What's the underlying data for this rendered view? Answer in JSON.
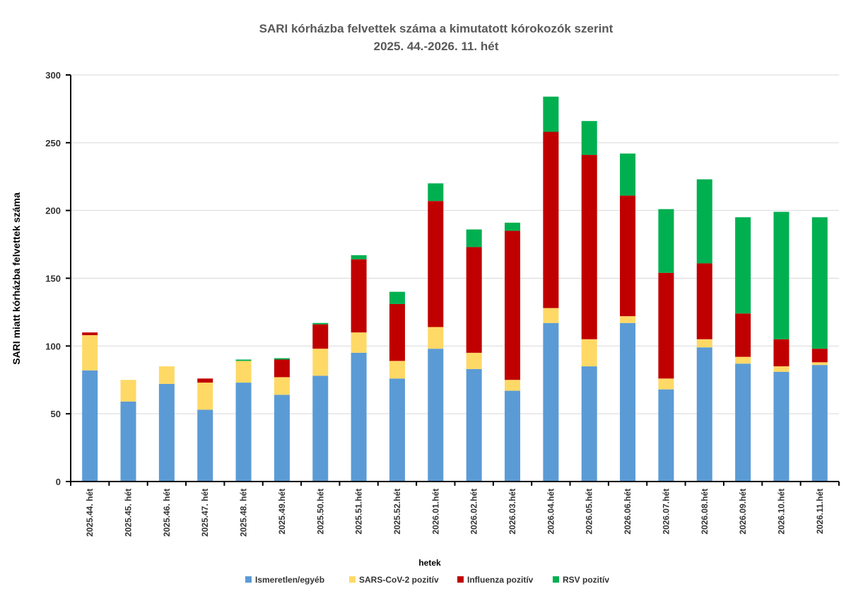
{
  "chart_data": {
    "type": "bar",
    "stacked": true,
    "title": "SARI kórházba felvettek száma a kimutatott kórokozók szerint",
    "subtitle": "2025. 44.-2026. 11. hét",
    "xlabel": "hetek",
    "ylabel": "SARI miatt kórházba felvettek száma",
    "ylim": [
      0,
      300
    ],
    "yticks": [
      0,
      50,
      100,
      150,
      200,
      250,
      300
    ],
    "grid": true,
    "legend_position": "bottom",
    "categories": [
      "2025.44. hét",
      "2025.45. hét",
      "2025.46. hét",
      "2025.47. hét",
      "2025.48. hét",
      "2025.49.hét",
      "2025.50.hét",
      "2025.51.hét",
      "2025.52.hét",
      "2026.01.hét",
      "2026.02.hét",
      "2026.03.hét",
      "2026.04.hét",
      "2026.05.hét",
      "2026.06.hét",
      "2026.07.hét",
      "2026.08.hét",
      "2026.09.hét",
      "2026.10.hét",
      "2026.11.hét"
    ],
    "series": [
      {
        "name": "Ismeretlen/egyéb",
        "color": "#5b9bd5",
        "values": [
          82,
          59,
          72,
          53,
          73,
          64,
          78,
          95,
          76,
          98,
          83,
          67,
          117,
          85,
          117,
          68,
          99,
          87,
          81,
          86
        ]
      },
      {
        "name": "SARS-CoV-2 pozitív",
        "color": "#ffd966",
        "values": [
          26,
          16,
          13,
          20,
          16,
          13,
          20,
          15,
          13,
          16,
          12,
          8,
          11,
          20,
          5,
          8,
          6,
          5,
          4,
          2
        ]
      },
      {
        "name": "Influenza pozitív",
        "color": "#c00000",
        "values": [
          2,
          0,
          0,
          3,
          0,
          13,
          18,
          54,
          42,
          93,
          78,
          110,
          130,
          136,
          89,
          78,
          56,
          32,
          20,
          10
        ]
      },
      {
        "name": "RSV pozitív",
        "color": "#00b050",
        "values": [
          0,
          0,
          0,
          0,
          1,
          1,
          1,
          3,
          9,
          13,
          13,
          6,
          26,
          25,
          31,
          47,
          62,
          71,
          94,
          97
        ]
      }
    ]
  }
}
